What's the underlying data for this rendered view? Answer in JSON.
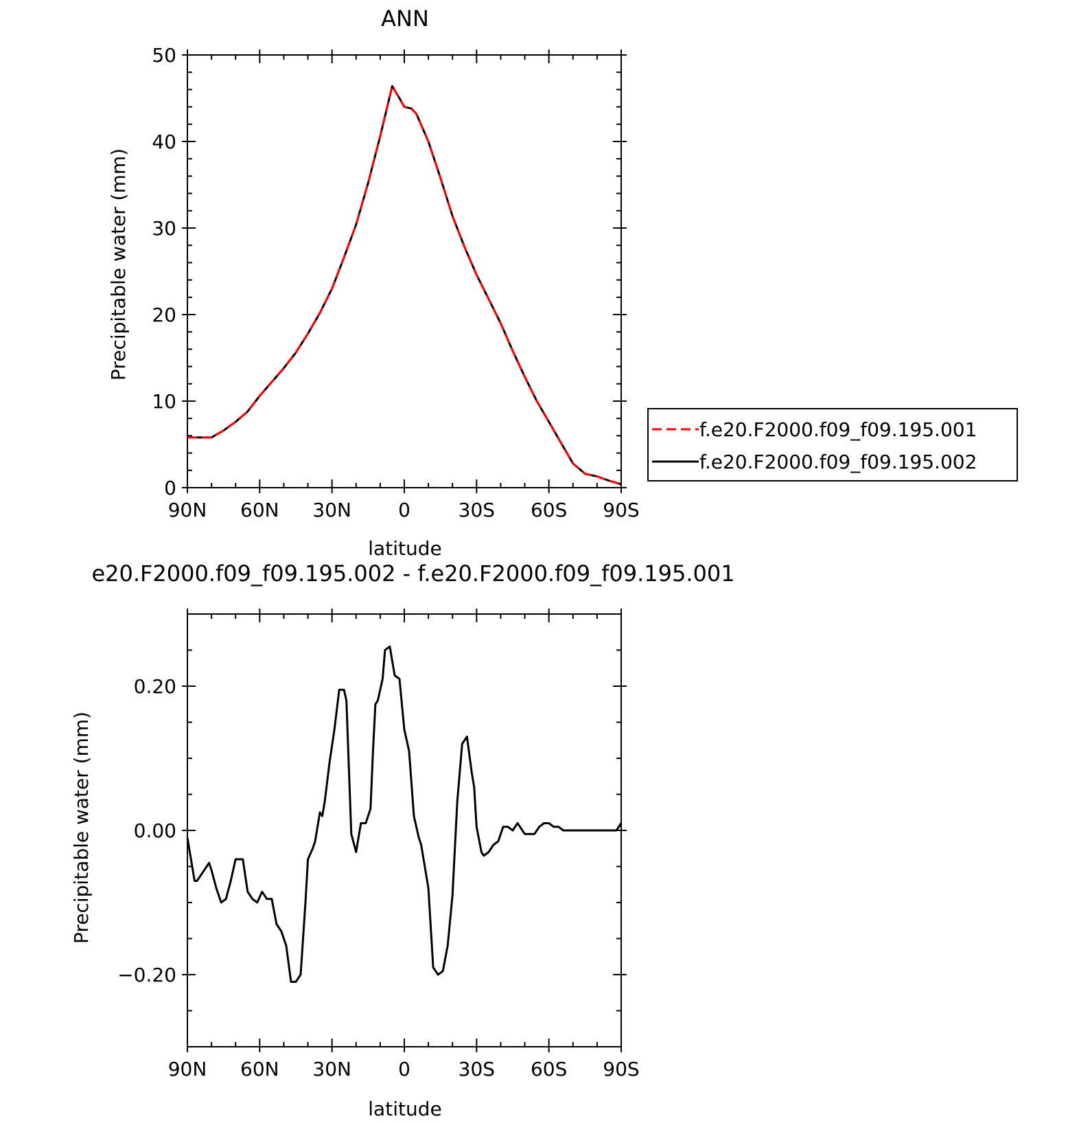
{
  "chart_data": [
    {
      "type": "line",
      "title": "ANN",
      "xlabel": "latitude",
      "ylabel": "Precipitable water (mm)",
      "x_ticks": [
        90,
        60,
        30,
        0,
        -30,
        -60,
        -90
      ],
      "x_tick_labels": [
        "90N",
        "60N",
        "30N",
        "0",
        "30S",
        "60S",
        "90S"
      ],
      "xlim": [
        90,
        -90
      ],
      "ylim": [
        0,
        50
      ],
      "y_ticks": [
        0,
        10,
        20,
        30,
        40,
        50
      ],
      "y_tick_labels": [
        "0",
        "10",
        "20",
        "30",
        "40",
        "50"
      ],
      "legend_position": "right",
      "x": [
        90,
        85,
        80,
        75,
        70,
        65,
        60,
        55,
        50,
        45,
        40,
        35,
        30,
        25,
        20,
        15,
        10,
        5,
        2,
        0,
        -3,
        -5,
        -10,
        -15,
        -20,
        -25,
        -30,
        -35,
        -40,
        -45,
        -50,
        -55,
        -60,
        -65,
        -70,
        -75,
        -80,
        -85,
        -90
      ],
      "series": [
        {
          "name": "f.e20.F2000.f09_f09.195.001",
          "color": "#ff0000",
          "dash": "dashed",
          "values": [
            5.8,
            5.8,
            5.8,
            6.6,
            7.6,
            8.8,
            10.6,
            12.2,
            13.8,
            15.6,
            17.8,
            20.2,
            23.0,
            26.6,
            30.4,
            35.2,
            40.6,
            46.4,
            45.0,
            44.0,
            43.8,
            43.2,
            40.0,
            35.8,
            31.4,
            27.8,
            24.6,
            21.8,
            19.0,
            15.8,
            12.8,
            10.0,
            7.6,
            5.2,
            2.8,
            1.6,
            1.3,
            0.8,
            0.4
          ]
        },
        {
          "name": "f.e20.F2000.f09_f09.195.002",
          "color": "#000000",
          "dash": "solid",
          "values": [
            5.8,
            5.8,
            5.8,
            6.6,
            7.6,
            8.8,
            10.6,
            12.2,
            13.8,
            15.6,
            17.8,
            20.2,
            23.0,
            26.6,
            30.4,
            35.2,
            40.6,
            46.4,
            45.0,
            44.0,
            43.8,
            43.2,
            40.0,
            35.8,
            31.4,
            27.8,
            24.6,
            21.8,
            19.0,
            15.8,
            12.8,
            10.0,
            7.6,
            5.2,
            2.8,
            1.6,
            1.3,
            0.8,
            0.4
          ]
        }
      ]
    },
    {
      "type": "line",
      "title": "e20.F2000.f09_f09.195.002 - f.e20.F2000.f09_f09.195.001",
      "xlabel": "latitude",
      "ylabel": "Precipitable water (mm)",
      "x_ticks": [
        90,
        60,
        30,
        0,
        -30,
        -60,
        -90
      ],
      "x_tick_labels": [
        "90N",
        "60N",
        "30N",
        "0",
        "30S",
        "60S",
        "90S"
      ],
      "xlim": [
        90,
        -90
      ],
      "ylim": [
        -0.3,
        0.3
      ],
      "y_ticks": [
        -0.2,
        0.0,
        0.2
      ],
      "y_tick_labels": [
        "−0.20",
        "0.00",
        "0.20"
      ],
      "x": [
        90,
        87,
        86,
        84,
        81,
        80,
        78,
        76,
        74,
        72,
        70,
        67,
        65,
        63,
        61,
        59,
        57,
        55,
        53,
        51,
        49,
        47,
        45,
        43,
        41,
        40,
        38,
        37,
        35,
        34,
        33,
        31,
        29,
        27,
        25,
        24,
        22,
        20,
        18,
        16,
        14,
        13,
        12,
        11,
        9,
        8,
        6,
        4,
        2,
        0,
        -2,
        -4,
        -6,
        -7,
        -9,
        -10,
        -12,
        -14,
        -16,
        -18,
        -20,
        -22,
        -24,
        -26,
        -28,
        -29,
        -30,
        -32,
        -33,
        -35,
        -37,
        -39,
        -41,
        -43,
        -45,
        -47,
        -50,
        -52,
        -54,
        -56,
        -58,
        -60,
        -62,
        -64,
        -66,
        -68,
        -70,
        -72,
        -74,
        -76,
        -78,
        -80,
        -82,
        -84,
        -86,
        -88,
        -90
      ],
      "series": [
        {
          "name": "",
          "color": "#000000",
          "dash": "solid",
          "values": [
            -0.01,
            -0.07,
            -0.07,
            -0.06,
            -0.045,
            -0.055,
            -0.08,
            -0.1,
            -0.095,
            -0.07,
            -0.04,
            -0.04,
            -0.085,
            -0.095,
            -0.1,
            -0.085,
            -0.095,
            -0.095,
            -0.13,
            -0.14,
            -0.16,
            -0.21,
            -0.21,
            -0.2,
            -0.1,
            -0.04,
            -0.025,
            -0.015,
            0.025,
            0.02,
            0.04,
            0.095,
            0.14,
            0.195,
            0.195,
            0.18,
            -0.005,
            -0.03,
            0.01,
            0.01,
            0.03,
            0.11,
            0.175,
            0.18,
            0.21,
            0.25,
            0.255,
            0.215,
            0.21,
            0.14,
            0.11,
            0.02,
            -0.01,
            -0.02,
            -0.06,
            -0.08,
            -0.19,
            -0.2,
            -0.195,
            -0.16,
            -0.09,
            0.04,
            0.12,
            0.13,
            0.08,
            0.06,
            0.005,
            -0.03,
            -0.035,
            -0.03,
            -0.02,
            -0.015,
            0.005,
            0.005,
            0.0,
            0.01,
            -0.005,
            -0.005,
            -0.005,
            0.005,
            0.01,
            0.01,
            0.005,
            0.005,
            0.0,
            0.0,
            0.0,
            0.0,
            0.0,
            0.0,
            0.0,
            0.0,
            0.0,
            0.0,
            0.0,
            0.0,
            0.01
          ]
        }
      ]
    }
  ]
}
